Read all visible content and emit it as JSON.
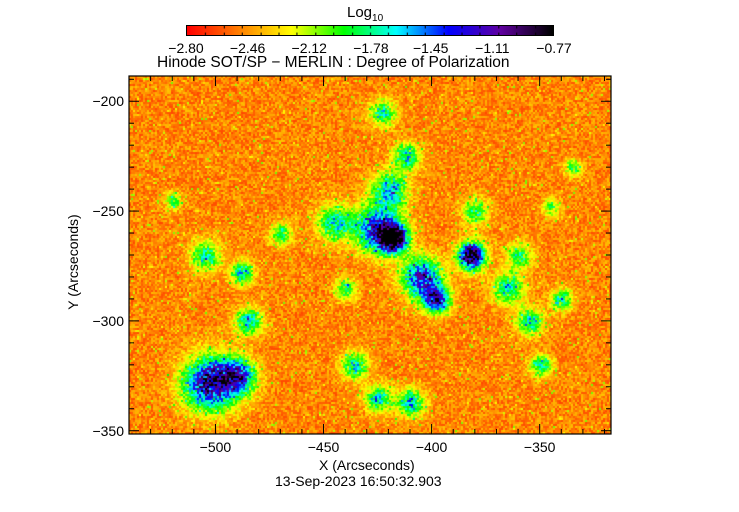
{
  "chart_data": {
    "type": "heatmap",
    "title": "Hinode SOT/SP − MERLIN : Degree of Polarization",
    "xlabel": "X (Arcseconds)",
    "ylabel": "Y (Arcseconds)",
    "xlim": [
      -540,
      -317
    ],
    "ylim": [
      -351.5,
      -188.5
    ],
    "x_ticks": [
      -500,
      -450,
      -400,
      -350
    ],
    "x_tick_labels": [
      "−500",
      "−450",
      "−400",
      "−350"
    ],
    "y_ticks": [
      -200,
      -250,
      -300,
      -350
    ],
    "y_tick_labels": [
      "−200",
      "−250",
      "−300",
      "−350"
    ],
    "minor_tick_step": 10,
    "colorbar": {
      "label": "Log",
      "label_subscript": "10",
      "range": [
        -2.8,
        -0.77
      ],
      "ticks": [
        -2.8,
        -2.46,
        -2.12,
        -1.78,
        -1.45,
        -1.11,
        -0.77
      ],
      "tick_labels": [
        "−2.80",
        "−2.46",
        "−2.12",
        "−1.78",
        "−1.45",
        "−1.11",
        "−0.77"
      ],
      "colormap": [
        "#ff0000",
        "#ff8000",
        "#ffff00",
        "#00ff00",
        "#00ffff",
        "#0000ff",
        "#6000a0",
        "#000000"
      ]
    },
    "timestamp": "13-Sep-2023 16:50:32.903"
  }
}
